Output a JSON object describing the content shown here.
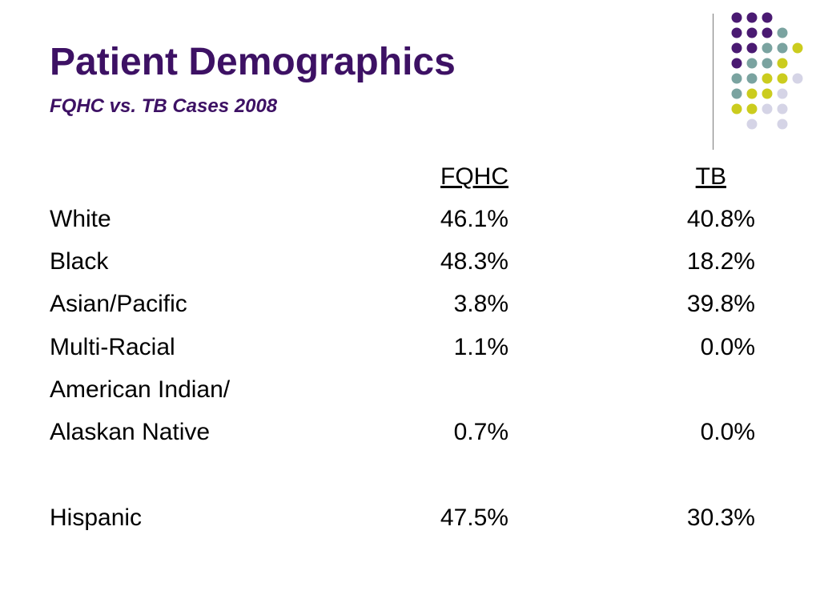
{
  "slide": {
    "title": "Patient Demographics",
    "subtitle": "FQHC vs. TB Cases 2008"
  },
  "colors": {
    "title": "#3d1164",
    "dot_purple": "#4a1a72",
    "dot_teal": "#7aa3a0",
    "dot_yellow": "#cbcc1e",
    "dot_lavender": "#d5d4e6",
    "divider": "#7a7a7a"
  },
  "table": {
    "headers": {
      "fqhc": "FQHC",
      "tb": "TB"
    },
    "rows": [
      {
        "label": "White",
        "fqhc": "46.1%",
        "tb": "40.8%"
      },
      {
        "label": "Black",
        "fqhc": "48.3%",
        "tb": "18.2%"
      },
      {
        "label": "Asian/Pacific",
        "fqhc": "3.8%",
        "tb": "39.8%"
      },
      {
        "label": "Multi-Racial",
        "fqhc": "1.1%",
        "tb": "0.0%"
      },
      {
        "label": "American Indian/",
        "fqhc": "",
        "tb": ""
      },
      {
        "label": "Alaskan Native",
        "fqhc": "0.7%",
        "tb": "0.0%"
      },
      {
        "label": "Hispanic",
        "fqhc": "47.5%",
        "tb": "30.3%"
      }
    ]
  }
}
